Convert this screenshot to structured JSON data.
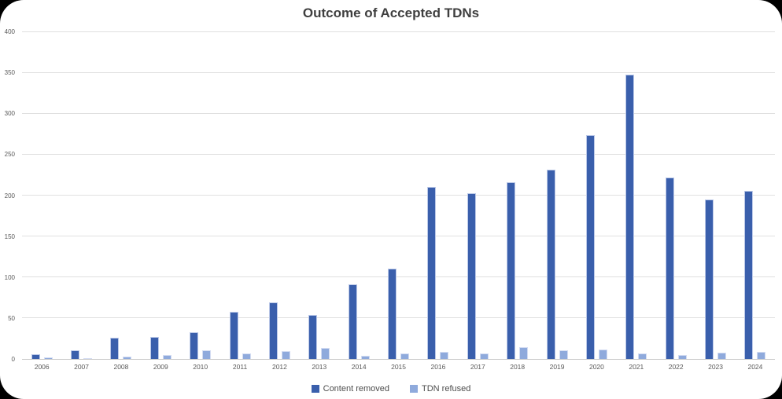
{
  "title": "Outcome of Accepted TDNs",
  "colors": {
    "content_removed": "#3a5fac",
    "tdn_refused": "#8faadc",
    "gridline": "#e0e0e0",
    "axis_text": "#595959",
    "title_text": "#3f3f3f",
    "card_background": "#ffffff",
    "page_background": "#000000"
  },
  "chart_data": {
    "type": "bar",
    "title": "Outcome of Accepted TDNs",
    "categories": [
      "2006",
      "2007",
      "2008",
      "2009",
      "2010",
      "2011",
      "2012",
      "2013",
      "2014",
      "2015",
      "2016",
      "2017",
      "2018",
      "2019",
      "2020",
      "2021",
      "2022",
      "2023",
      "2024"
    ],
    "series": [
      {
        "name": "Content removed",
        "color": "#3a5fac",
        "values": [
          6,
          11,
          26,
          27,
          33,
          58,
          69,
          54,
          91,
          111,
          211,
          203,
          216,
          232,
          274,
          348,
          222,
          195,
          206
        ]
      },
      {
        "name": "TDN refused",
        "color": "#8faadc",
        "values": [
          2,
          1,
          3,
          5,
          11,
          7,
          10,
          13,
          4,
          7,
          9,
          7,
          14,
          11,
          12,
          7,
          5,
          8,
          9
        ]
      }
    ],
    "xlabel": "",
    "ylabel": "",
    "ylim": [
      0,
      400
    ],
    "yticks": [
      0,
      50,
      100,
      150,
      200,
      250,
      300,
      350,
      400
    ],
    "grid": true,
    "legend_position": "bottom"
  }
}
